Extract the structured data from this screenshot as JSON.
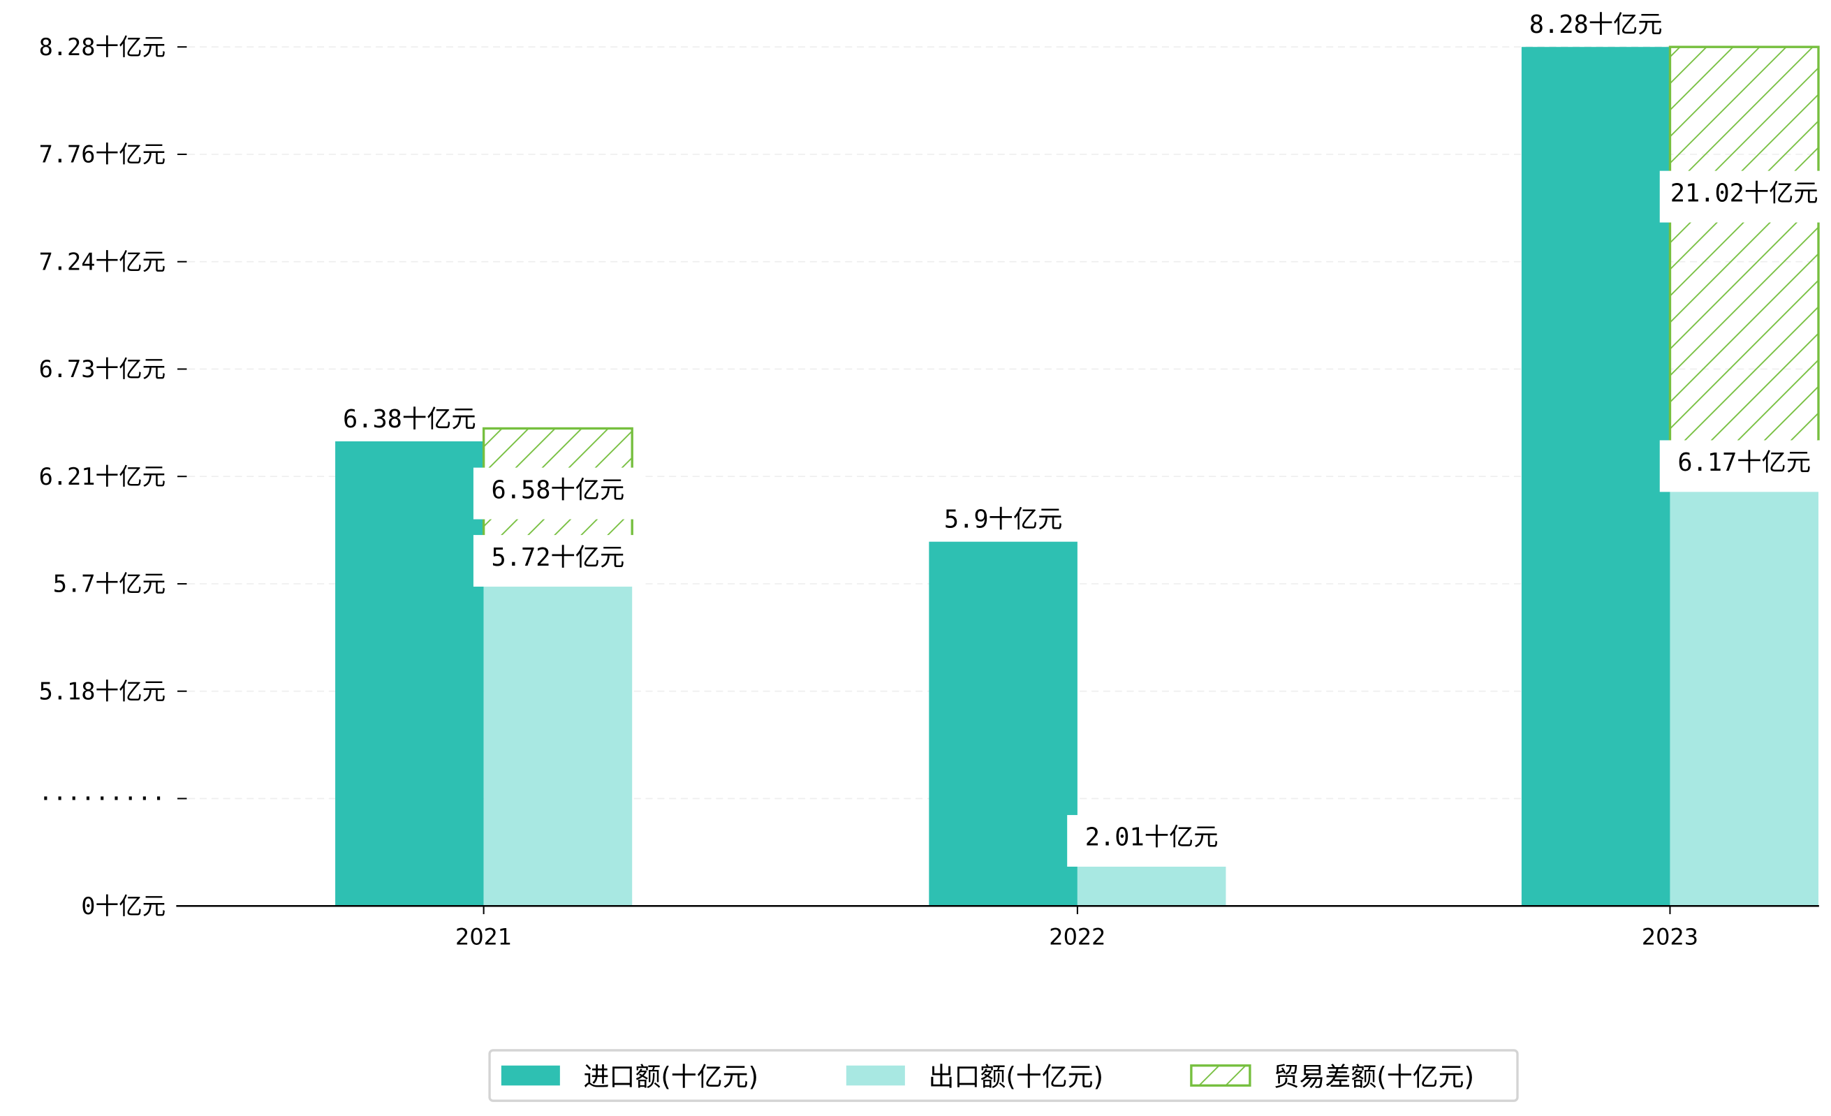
{
  "chart_data": {
    "type": "bar",
    "title": "",
    "xlabel": "",
    "ylabel": "",
    "categories": [
      "2021",
      "2022",
      "2023"
    ],
    "series": [
      {
        "name": "进口额(十亿元)",
        "values": [
          6.38,
          5.9,
          8.28
        ],
        "labels": [
          "6.38十亿元",
          "5.9十亿元",
          "8.28十亿元"
        ],
        "color": "#2ec0b2"
      },
      {
        "name": "出口额(十亿元)",
        "values": [
          5.72,
          2.01,
          6.17
        ],
        "labels": [
          "5.72十亿元",
          "2.01十亿元",
          "6.17十亿元"
        ],
        "color": "#a8e8e2"
      },
      {
        "name": "贸易差额(十亿元)",
        "values": [
          6.58,
          null,
          21.02
        ],
        "labels": [
          "6.58十亿元",
          null,
          "21.02十亿元"
        ],
        "color": "#76bf3f",
        "pattern": "hatch"
      }
    ],
    "yticks": [
      {
        "value": 0,
        "label": "0十亿元"
      },
      {
        "value": 4.66,
        "label": "·········"
      },
      {
        "value": 5.18,
        "label": "5.18十亿元"
      },
      {
        "value": 5.7,
        "label": "5.7十亿元"
      },
      {
        "value": 6.21,
        "label": "6.21十亿元"
      },
      {
        "value": 6.73,
        "label": "6.73十亿元"
      },
      {
        "value": 7.24,
        "label": "7.24十亿元"
      },
      {
        "value": 7.76,
        "label": "7.76十亿元"
      },
      {
        "value": 8.28,
        "label": "8.28十亿元"
      }
    ],
    "ylim": [
      0,
      8.28
    ],
    "axis_break": true,
    "grid": true,
    "legend_position": "bottom-center"
  }
}
